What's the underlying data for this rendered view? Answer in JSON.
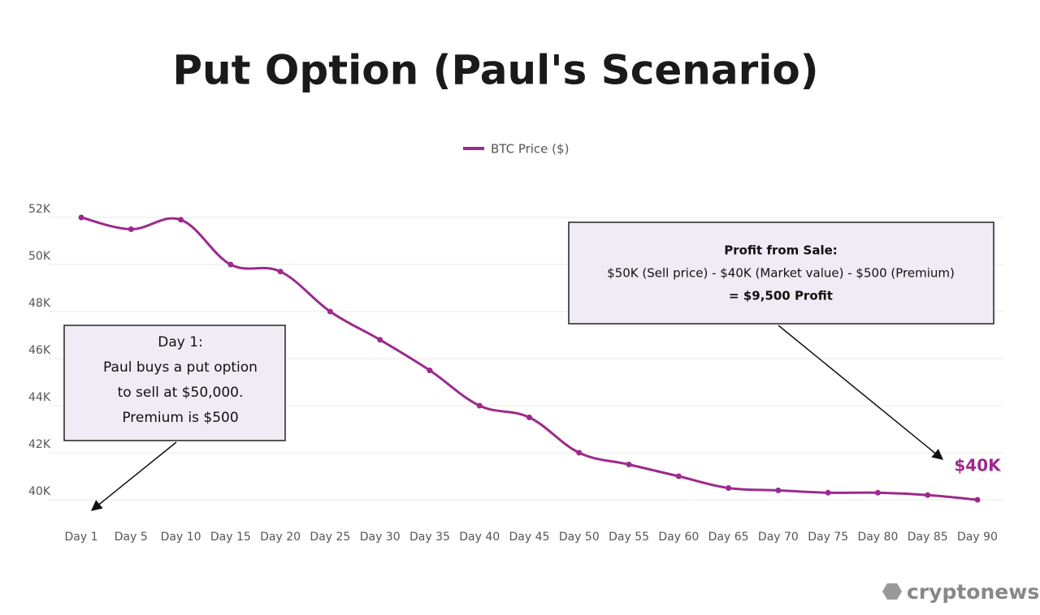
{
  "chart_data": {
    "type": "line",
    "title": "Put Option (Paul's Scenario)",
    "categories": [
      "Day 1",
      "Day 5",
      "Day 10",
      "Day 15",
      "Day 20",
      "Day 25",
      "Day 30",
      "Day 35",
      "Day 40",
      "Day 45",
      "Day 50",
      "Day 55",
      "Day 60",
      "Day 65",
      "Day 70",
      "Day 75",
      "Day 80",
      "Day 85",
      "Day 90"
    ],
    "series": [
      {
        "name": "BTC Price ($)",
        "color": "#9c2a8c",
        "values": [
          52000,
          51500,
          51900,
          50000,
          49700,
          48000,
          46800,
          45500,
          44000,
          43500,
          42000,
          41500,
          41000,
          40500,
          40400,
          40300,
          40300,
          40200,
          40000
        ]
      }
    ],
    "ylim": [
      40000,
      52000
    ],
    "yticks": [
      {
        "value": 40000,
        "label": "40K"
      },
      {
        "value": 42000,
        "label": "42K"
      },
      {
        "value": 44000,
        "label": "44K"
      },
      {
        "value": 46000,
        "label": "46K"
      },
      {
        "value": 48000,
        "label": "48K"
      },
      {
        "value": 50000,
        "label": "50K"
      },
      {
        "value": 52000,
        "label": "52K"
      }
    ],
    "grid": true,
    "legend": "top",
    "annotations": [
      {
        "lines": [
          "Day 1:",
          "Paul buys a put option",
          "to sell at $50,000.",
          "Premium is $500"
        ]
      },
      {
        "lines": [
          "Profit from Sale:",
          "$50K (Sell price) - $40K (Market value) - $500 (Premium)",
          "= $9,500 Profit"
        ]
      },
      {
        "lines": [
          "$40K"
        ]
      }
    ],
    "source": "cryptonews"
  }
}
